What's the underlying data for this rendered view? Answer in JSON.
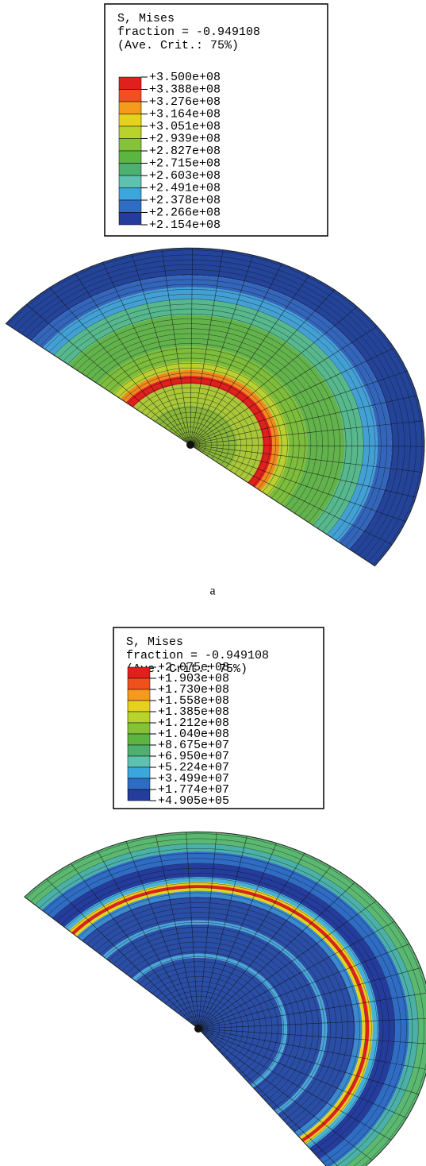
{
  "panels": [
    {
      "legend": {
        "title": [
          "S, Mises",
          "fraction = -0.949108",
          "(Ave. Crit.: 75%)"
        ],
        "labels": [
          "+3.500e+08",
          "+3.388e+08",
          "+3.276e+08",
          "+3.164e+08",
          "+3.051e+08",
          "+2.939e+08",
          "+2.827e+08",
          "+2.715e+08",
          "+2.603e+08",
          "+2.491e+08",
          "+2.378e+08",
          "+2.266e+08",
          "+2.154e+08"
        ]
      },
      "caption": "a"
    },
    {
      "legend": {
        "title": [
          "S, Mises",
          "fraction = -0.949108",
          "(Ave. Crit.: 75%)"
        ],
        "labels": [
          "+2.075e+08",
          "+1.903e+08",
          "+1.730e+08",
          "+1.558e+08",
          "+1.385e+08",
          "+1.212e+08",
          "+1.040e+08",
          "+8.675e+07",
          "+6.950e+07",
          "+5.224e+07",
          "+3.499e+07",
          "+1.774e+07",
          "+4.905e+05"
        ]
      }
    }
  ]
}
